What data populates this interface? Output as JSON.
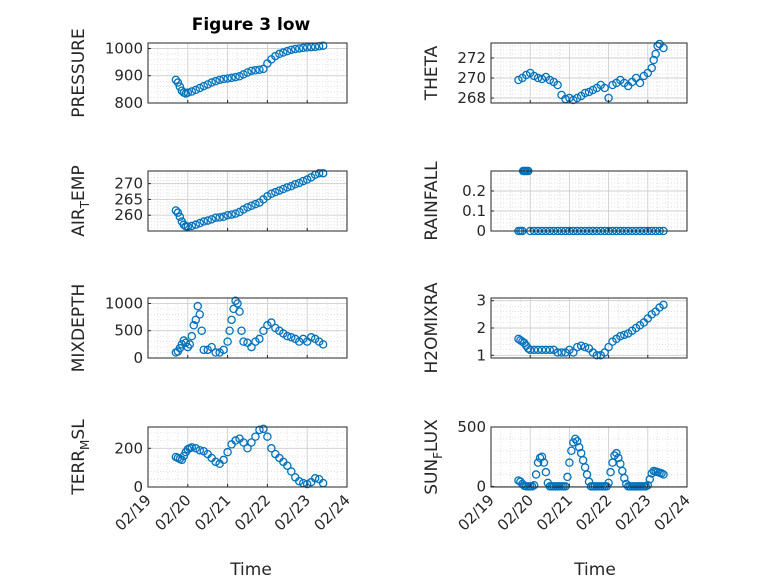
{
  "figure_title": "Figure 3 low",
  "x_label": "Time",
  "x_tick_labels": [
    "02/19",
    "02/20",
    "02/21",
    "02/22",
    "02/23",
    "02/24"
  ],
  "marker_color": "#0072BD",
  "grid": true,
  "chart_data": [
    {
      "type": "scatter",
      "name_label": "PRESSURE",
      "ylim": [
        800,
        1020
      ],
      "yticks": [
        800,
        900,
        1000
      ],
      "ytick_labels": [
        "800",
        "900",
        "1000"
      ],
      "x": [
        19.7,
        19.75,
        19.8,
        19.85,
        19.9,
        19.95,
        20.0,
        20.1,
        20.2,
        20.3,
        20.4,
        20.5,
        20.6,
        20.7,
        20.8,
        20.9,
        21.0,
        21.1,
        21.2,
        21.3,
        21.4,
        21.5,
        21.6,
        21.7,
        21.8,
        21.9,
        22.0,
        22.1,
        22.2,
        22.3,
        22.4,
        22.5,
        22.6,
        22.7,
        22.8,
        22.9,
        23.0,
        23.1,
        23.2,
        23.3,
        23.4
      ],
      "y": [
        885,
        875,
        860,
        845,
        838,
        835,
        838,
        842,
        848,
        855,
        862,
        868,
        875,
        880,
        885,
        888,
        890,
        892,
        895,
        898,
        905,
        912,
        918,
        920,
        922,
        925,
        945,
        960,
        972,
        980,
        985,
        990,
        995,
        998,
        1000,
        1002,
        1004,
        1005,
        1006,
        1008,
        1010
      ]
    },
    {
      "type": "scatter",
      "name_label": "THETA",
      "ylim": [
        267.5,
        273.5
      ],
      "yticks": [
        268,
        270,
        272
      ],
      "ytick_labels": [
        "268",
        "270",
        "272"
      ],
      "x": [
        19.7,
        19.8,
        19.9,
        20.0,
        20.1,
        20.2,
        20.3,
        20.4,
        20.5,
        20.6,
        20.7,
        20.8,
        20.9,
        21.0,
        21.1,
        21.2,
        21.3,
        21.4,
        21.5,
        21.6,
        21.7,
        21.8,
        21.9,
        22.0,
        22.1,
        22.2,
        22.3,
        22.4,
        22.5,
        22.6,
        22.7,
        22.8,
        22.9,
        23.0,
        23.1,
        23.15,
        23.2,
        23.25,
        23.3,
        23.4
      ],
      "y": [
        269.8,
        270.0,
        270.3,
        270.5,
        270.2,
        270.0,
        269.9,
        270.1,
        269.8,
        269.6,
        269.3,
        268.3,
        267.9,
        268.0,
        267.8,
        268.0,
        268.2,
        268.5,
        268.6,
        268.8,
        269.0,
        269.3,
        269.0,
        268.0,
        269.3,
        269.5,
        269.8,
        269.5,
        269.2,
        269.6,
        270.0,
        269.5,
        270.2,
        270.5,
        271.0,
        271.8,
        272.4,
        273.2,
        273.4,
        273.0
      ]
    },
    {
      "type": "scatter",
      "name_label": "AIR_TEMP",
      "ylim": [
        255,
        274
      ],
      "yticks": [
        260,
        265,
        270
      ],
      "ytick_labels": [
        "260",
        "265",
        "270"
      ],
      "x": [
        19.7,
        19.75,
        19.8,
        19.85,
        19.9,
        19.95,
        20.0,
        20.1,
        20.2,
        20.3,
        20.4,
        20.5,
        20.6,
        20.7,
        20.8,
        20.9,
        21.0,
        21.1,
        21.2,
        21.3,
        21.4,
        21.5,
        21.6,
        21.7,
        21.8,
        21.9,
        22.0,
        22.1,
        22.2,
        22.3,
        22.4,
        22.5,
        22.6,
        22.7,
        22.8,
        22.9,
        23.0,
        23.1,
        23.2,
        23.3,
        23.4
      ],
      "y": [
        261.5,
        260.8,
        259.5,
        258.0,
        257.0,
        256.5,
        256.4,
        256.6,
        257.0,
        257.5,
        258.0,
        258.3,
        258.7,
        259.2,
        259.3,
        259.5,
        260.0,
        260.2,
        260.5,
        261.0,
        261.8,
        262.5,
        263.0,
        263.5,
        264.0,
        265.0,
        266.0,
        266.8,
        267.3,
        267.8,
        268.3,
        268.8,
        269.2,
        269.8,
        270.2,
        270.8,
        271.3,
        272.0,
        272.8,
        273.3,
        273.3
      ]
    },
    {
      "type": "scatter",
      "name_label": "RAINFALL",
      "ylim": [
        0,
        0.3
      ],
      "yticks": [
        0,
        0.1,
        0.2
      ],
      "ytick_labels": [
        "0",
        "0.1",
        "0.2"
      ],
      "x": [
        19.7,
        19.75,
        19.8,
        19.82,
        19.85,
        19.88,
        19.92,
        19.95,
        20.0,
        20.1,
        20.2,
        20.3,
        20.4,
        20.5,
        20.6,
        20.7,
        20.8,
        20.9,
        21.0,
        21.1,
        21.2,
        21.3,
        21.4,
        21.5,
        21.6,
        21.7,
        21.8,
        21.9,
        22.0,
        22.1,
        22.2,
        22.3,
        22.4,
        22.5,
        22.6,
        22.7,
        22.8,
        22.9,
        23.0,
        23.1,
        23.2,
        23.3,
        23.4
      ],
      "y": [
        0,
        0,
        0,
        0.3,
        0.3,
        0.3,
        0.3,
        0.3,
        0,
        0,
        0,
        0,
        0,
        0,
        0,
        0,
        0,
        0,
        0,
        0,
        0,
        0,
        0,
        0,
        0,
        0,
        0,
        0,
        0,
        0,
        0,
        0,
        0,
        0,
        0,
        0,
        0,
        0,
        0,
        0,
        0,
        0,
        0
      ]
    },
    {
      "type": "scatter",
      "name_label": "MIXDEPTH",
      "ylim": [
        0,
        1100
      ],
      "yticks": [
        0,
        500,
        1000
      ],
      "ytick_labels": [
        "0",
        "500",
        "1000"
      ],
      "x": [
        19.7,
        19.75,
        19.8,
        19.85,
        19.9,
        19.95,
        20.0,
        20.05,
        20.1,
        20.15,
        20.2,
        20.25,
        20.3,
        20.35,
        20.4,
        20.5,
        20.6,
        20.7,
        20.8,
        20.9,
        21.0,
        21.05,
        21.1,
        21.15,
        21.2,
        21.25,
        21.3,
        21.35,
        21.4,
        21.5,
        21.6,
        21.7,
        21.8,
        21.9,
        22.0,
        22.1,
        22.2,
        22.3,
        22.4,
        22.5,
        22.6,
        22.7,
        22.8,
        22.9,
        23.0,
        23.1,
        23.2,
        23.3,
        23.4
      ],
      "y": [
        100,
        120,
        180,
        250,
        320,
        280,
        200,
        250,
        400,
        600,
        700,
        950,
        800,
        500,
        150,
        150,
        200,
        100,
        100,
        150,
        300,
        500,
        700,
        900,
        1050,
        1000,
        850,
        500,
        300,
        280,
        200,
        300,
        350,
        500,
        600,
        650,
        550,
        500,
        450,
        400,
        380,
        350,
        300,
        350,
        300,
        380,
        350,
        300,
        250
      ]
    },
    {
      "type": "scatter",
      "name_label": "H2OMIXRA",
      "ylim": [
        0.9,
        3.1
      ],
      "yticks": [
        1,
        2,
        3
      ],
      "ytick_labels": [
        "1",
        "2",
        "3"
      ],
      "x": [
        19.7,
        19.75,
        19.8,
        19.85,
        19.9,
        19.95,
        20.0,
        20.1,
        20.2,
        20.3,
        20.4,
        20.5,
        20.6,
        20.7,
        20.8,
        20.9,
        21.0,
        21.1,
        21.2,
        21.3,
        21.4,
        21.5,
        21.6,
        21.7,
        21.8,
        21.9,
        22.0,
        22.1,
        22.2,
        22.3,
        22.4,
        22.5,
        22.6,
        22.7,
        22.8,
        22.9,
        23.0,
        23.1,
        23.2,
        23.3,
        23.4
      ],
      "y": [
        1.6,
        1.55,
        1.5,
        1.45,
        1.35,
        1.25,
        1.2,
        1.2,
        1.2,
        1.2,
        1.2,
        1.2,
        1.2,
        1.1,
        1.1,
        1.1,
        1.2,
        1.1,
        1.3,
        1.35,
        1.3,
        1.25,
        1.1,
        1.0,
        1.0,
        1.1,
        1.3,
        1.5,
        1.6,
        1.7,
        1.75,
        1.8,
        1.9,
        2.0,
        2.1,
        2.2,
        2.35,
        2.5,
        2.6,
        2.75,
        2.85
      ]
    },
    {
      "type": "scatter",
      "name_label": "TERR_MSL",
      "ylim": [
        0,
        310
      ],
      "yticks": [
        0,
        200
      ],
      "ytick_labels": [
        "0",
        "200"
      ],
      "x": [
        19.7,
        19.75,
        19.8,
        19.85,
        19.9,
        19.95,
        20.0,
        20.05,
        20.1,
        20.2,
        20.3,
        20.4,
        20.5,
        20.6,
        20.7,
        20.8,
        20.9,
        21.0,
        21.1,
        21.2,
        21.3,
        21.4,
        21.5,
        21.6,
        21.7,
        21.8,
        21.9,
        22.0,
        22.1,
        22.2,
        22.3,
        22.4,
        22.5,
        22.6,
        22.7,
        22.8,
        22.9,
        23.0,
        23.1,
        23.2,
        23.3,
        23.4
      ],
      "y": [
        155,
        150,
        145,
        140,
        160,
        180,
        195,
        200,
        205,
        200,
        190,
        185,
        170,
        150,
        130,
        120,
        140,
        180,
        220,
        240,
        250,
        230,
        200,
        230,
        260,
        295,
        300,
        260,
        200,
        170,
        150,
        130,
        110,
        80,
        50,
        30,
        20,
        15,
        25,
        45,
        40,
        20
      ]
    },
    {
      "type": "scatter",
      "name_label": "SUN_FLUX",
      "ylim": [
        -5,
        500
      ],
      "yticks": [
        0,
        500
      ],
      "ytick_labels": [
        "0",
        "500"
      ],
      "x": [
        19.7,
        19.75,
        19.8,
        19.85,
        19.9,
        19.95,
        20.0,
        20.05,
        20.1,
        20.15,
        20.2,
        20.25,
        20.3,
        20.35,
        20.4,
        20.45,
        20.5,
        20.55,
        20.6,
        20.65,
        20.7,
        20.75,
        20.8,
        20.85,
        20.9,
        20.95,
        21.0,
        21.05,
        21.1,
        21.15,
        21.2,
        21.25,
        21.3,
        21.35,
        21.4,
        21.45,
        21.5,
        21.55,
        21.6,
        21.65,
        21.7,
        21.75,
        21.8,
        21.85,
        21.9,
        21.95,
        22.0,
        22.05,
        22.1,
        22.15,
        22.2,
        22.25,
        22.3,
        22.35,
        22.4,
        22.45,
        22.5,
        22.55,
        22.6,
        22.65,
        22.7,
        22.75,
        22.8,
        22.85,
        22.9,
        22.95,
        23.0,
        23.05,
        23.1,
        23.15,
        23.2,
        23.25,
        23.3,
        23.35,
        23.4
      ],
      "y": [
        50,
        40,
        20,
        5,
        0,
        0,
        0,
        0,
        10,
        100,
        200,
        240,
        250,
        200,
        120,
        30,
        0,
        0,
        0,
        0,
        0,
        0,
        0,
        0,
        0,
        80,
        200,
        300,
        370,
        400,
        380,
        330,
        280,
        220,
        160,
        100,
        40,
        0,
        0,
        0,
        0,
        0,
        0,
        0,
        0,
        0,
        30,
        120,
        200,
        260,
        280,
        240,
        190,
        130,
        70,
        20,
        0,
        0,
        0,
        0,
        0,
        0,
        0,
        0,
        0,
        0,
        10,
        60,
        110,
        130,
        125,
        120,
        115,
        110,
        100
      ]
    }
  ]
}
